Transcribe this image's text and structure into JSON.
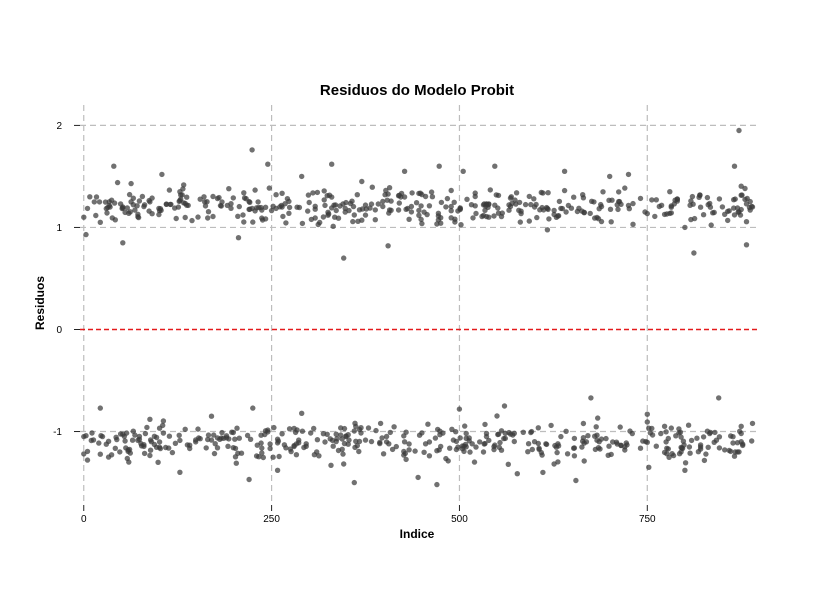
{
  "chart_data": {
    "type": "scatter",
    "title": "Residuos do Modelo Probit",
    "xlabel": "Indice",
    "ylabel": "Residuos",
    "xlim": [
      -5,
      900
    ],
    "ylim": [
      -1.72,
      2.2
    ],
    "xticks": [
      0,
      250,
      500,
      750
    ],
    "yticks": [
      -1,
      0,
      1,
      2
    ],
    "x_tick_labels": [
      "0",
      "250",
      "500",
      "750"
    ],
    "y_tick_labels": [
      "-1",
      "0",
      "1",
      "2"
    ],
    "grid": true,
    "reference_line": {
      "y": 0,
      "color": "#e41a1c",
      "style": "dashed"
    },
    "point_color": "#3a3a3a",
    "n_points": 890,
    "series": [
      {
        "sample_points": [
          [
            0,
            1.1
          ],
          [
            3,
            0.93
          ],
          [
            8,
            1.3
          ],
          [
            14,
            1.25
          ],
          [
            22,
            1.05
          ],
          [
            35,
            1.2
          ],
          [
            40,
            1.6
          ],
          [
            52,
            0.85
          ],
          [
            63,
            1.43
          ],
          [
            88,
            1.25
          ],
          [
            104,
            1.52
          ],
          [
            128,
            1.35
          ],
          [
            160,
            1.3
          ],
          [
            193,
            1.38
          ],
          [
            206,
            0.9
          ],
          [
            224,
            1.76
          ],
          [
            245,
            1.62
          ],
          [
            290,
            1.5
          ],
          [
            330,
            1.62
          ],
          [
            346,
            0.7
          ],
          [
            370,
            1.45
          ],
          [
            405,
            0.82
          ],
          [
            427,
            1.55
          ],
          [
            473,
            1.6
          ],
          [
            505,
            1.55
          ],
          [
            547,
            1.6
          ],
          [
            600,
            1.2
          ],
          [
            640,
            1.55
          ],
          [
            700,
            1.5
          ],
          [
            725,
            1.52
          ],
          [
            780,
            1.35
          ],
          [
            800,
            1.0
          ],
          [
            812,
            0.75
          ],
          [
            866,
            1.6
          ],
          [
            872,
            1.95
          ],
          [
            882,
            0.83
          ],
          [
            890,
            1.2
          ],
          [
            0,
            -1.05
          ],
          [
            5,
            -1.28
          ],
          [
            22,
            -0.77
          ],
          [
            48,
            -1.2
          ],
          [
            60,
            -1.3
          ],
          [
            88,
            -0.88
          ],
          [
            128,
            -1.4
          ],
          [
            170,
            -0.85
          ],
          [
            220,
            -1.47
          ],
          [
            225,
            -0.77
          ],
          [
            258,
            -1.38
          ],
          [
            310,
            -1.2
          ],
          [
            360,
            -1.5
          ],
          [
            395,
            -0.92
          ],
          [
            445,
            -1.45
          ],
          [
            470,
            -1.52
          ],
          [
            500,
            -0.78
          ],
          [
            520,
            -1.3
          ],
          [
            560,
            -0.75
          ],
          [
            600,
            -1.1
          ],
          [
            655,
            -1.48
          ],
          [
            675,
            -0.67
          ],
          [
            720,
            -1.15
          ],
          [
            750,
            -0.83
          ],
          [
            800,
            -1.38
          ],
          [
            845,
            -0.67
          ],
          [
            872,
            -1.2
          ],
          [
            890,
            -0.92
          ]
        ]
      }
    ]
  }
}
